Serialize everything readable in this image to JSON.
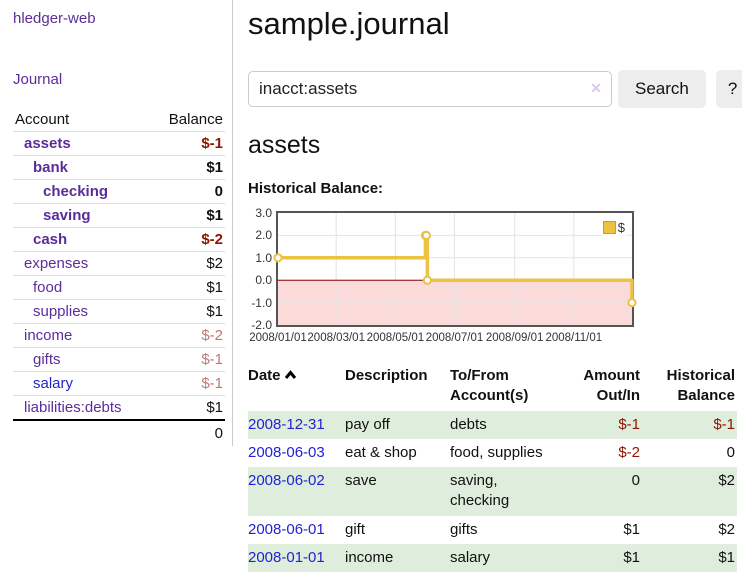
{
  "app": {
    "title": "hledger-web",
    "nav_journal": "Journal"
  },
  "colors": {
    "link_purple": "#5b2d9b",
    "link_blue": "#2424cc",
    "date_blue": "#2222d2",
    "negative_strong": "#8e1300",
    "negative_dim": "#bd7777",
    "row_stripe_green": "#dfeedc",
    "chart_line_gold": "#edc240",
    "chart_negative_fill": "#fbdada",
    "chart_zero_line": "#8b0000",
    "chart_border": "#545454"
  },
  "sidebar": {
    "header": {
      "account": "Account",
      "balance": "Balance"
    },
    "accounts": [
      {
        "name": "assets",
        "balance": "$-1",
        "depth": 1,
        "bold": true,
        "balance_color": "neg-strong",
        "link_color": "purple"
      },
      {
        "name": "bank",
        "balance": "$1",
        "depth": 2,
        "bold": true,
        "balance_color": "pos",
        "link_color": "purple"
      },
      {
        "name": "checking",
        "balance": "0",
        "depth": 3,
        "bold": true,
        "balance_color": "pos",
        "link_color": "purple"
      },
      {
        "name": "saving",
        "balance": "$1",
        "depth": 3,
        "bold": true,
        "balance_color": "pos",
        "link_color": "purple"
      },
      {
        "name": "cash",
        "balance": "$-2",
        "depth": 2,
        "bold": true,
        "balance_color": "neg-strong",
        "link_color": "purple"
      },
      {
        "name": "expenses",
        "balance": "$2",
        "depth": 1,
        "bold": false,
        "balance_color": "pos",
        "link_color": "purple"
      },
      {
        "name": "food",
        "balance": "$1",
        "depth": 2,
        "bold": false,
        "balance_color": "pos",
        "link_color": "purple"
      },
      {
        "name": "supplies",
        "balance": "$1",
        "depth": 2,
        "bold": false,
        "balance_color": "pos",
        "link_color": "purple"
      },
      {
        "name": "income",
        "balance": "$-2",
        "depth": 1,
        "bold": false,
        "balance_color": "neg-dim",
        "link_color": "purple"
      },
      {
        "name": "gifts",
        "balance": "$-1",
        "depth": 2,
        "bold": false,
        "balance_color": "neg-dim",
        "link_color": "purple"
      },
      {
        "name": "salary",
        "balance": "$-1",
        "depth": 2,
        "bold": false,
        "balance_color": "neg-dim",
        "link_color": "blue"
      },
      {
        "name": "liabilities:debts",
        "balance": "$1",
        "depth": 1,
        "bold": false,
        "balance_color": "pos",
        "link_color": "purple"
      }
    ],
    "total": "0"
  },
  "main": {
    "title": "sample.journal",
    "search": {
      "value": "inacct:assets",
      "clear_icon": "✕",
      "button": "Search",
      "help": "?"
    },
    "account_heading": "assets",
    "chart_title": "Historical Balance:"
  },
  "chart_data": {
    "type": "line",
    "step": true,
    "title": "Historical Balance",
    "series": [
      {
        "name": "$",
        "color": "#edc240",
        "points": [
          [
            "2008-01-01",
            1
          ],
          [
            "2008-06-01",
            2
          ],
          [
            "2008-06-02",
            2
          ],
          [
            "2008-06-03",
            0
          ],
          [
            "2008-12-31",
            -1
          ]
        ]
      }
    ],
    "x_range": [
      "2008-01-01",
      "2008-12-31"
    ],
    "x_ticks": [
      "2008/01/01",
      "2008/03/01",
      "2008/05/01",
      "2008/07/01",
      "2008/09/01",
      "2008/11/01"
    ],
    "y_ticks": [
      "3.0",
      "2.0",
      "1.0",
      "0.0",
      "-1.0",
      "-2.0"
    ],
    "ylim": [
      -2,
      3
    ],
    "grid": true,
    "legend_position": "top-right",
    "negative_region_fill": "#fbdada",
    "zero_line_color": "#8b0000",
    "grid_color": "#e4e4e4"
  },
  "register": {
    "headers": {
      "date": "Date",
      "description": "Description",
      "accounts": "To/From Account(s)",
      "amount": "Amount Out/In",
      "balance": "Historical Balance"
    },
    "rows": [
      {
        "date": "2008-12-31",
        "description": "pay off",
        "accounts": "debts",
        "amount": "$-1",
        "amount_neg": true,
        "balance": "$-1",
        "balance_neg": true
      },
      {
        "date": "2008-06-03",
        "description": "eat & shop",
        "accounts": "food, supplies",
        "amount": "$-2",
        "amount_neg": true,
        "balance": "0",
        "balance_neg": false
      },
      {
        "date": "2008-06-02",
        "description": "save",
        "accounts": "saving, checking",
        "amount": "0",
        "amount_neg": false,
        "balance": "$2",
        "balance_neg": false
      },
      {
        "date": "2008-06-01",
        "description": "gift",
        "accounts": "gifts",
        "amount": "$1",
        "amount_neg": false,
        "balance": "$2",
        "balance_neg": false
      },
      {
        "date": "2008-01-01",
        "description": "income",
        "accounts": "salary",
        "amount": "$1",
        "amount_neg": false,
        "balance": "$1",
        "balance_neg": false
      }
    ]
  }
}
